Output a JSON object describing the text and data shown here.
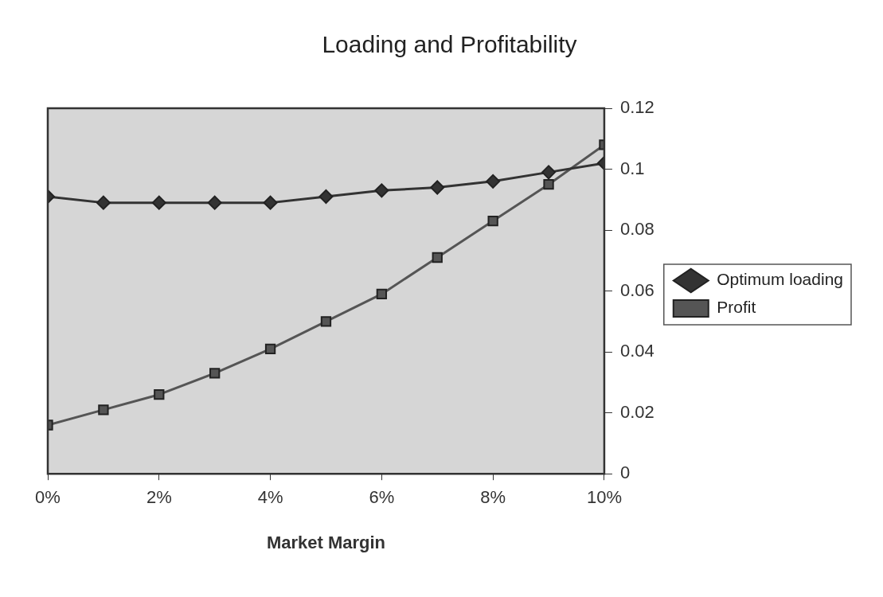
{
  "chart_data": {
    "type": "line",
    "title": "Loading and Profitability",
    "xlabel": "Market Margin",
    "x": [
      0,
      0.01,
      0.02,
      0.03,
      0.04,
      0.05,
      0.06,
      0.07,
      0.08,
      0.09,
      0.1
    ],
    "xlim": [
      0,
      0.1
    ],
    "xticks": [
      {
        "value": 0,
        "label": "0%"
      },
      {
        "value": 0.02,
        "label": "2%"
      },
      {
        "value": 0.04,
        "label": "4%"
      },
      {
        "value": 0.06,
        "label": "6%"
      },
      {
        "value": 0.08,
        "label": "8%"
      },
      {
        "value": 0.1,
        "label": "10%"
      }
    ],
    "ylim": [
      0,
      0.12
    ],
    "yticks": [
      0,
      0.02,
      0.04,
      0.06,
      0.08,
      0.1,
      0.12
    ],
    "series": [
      {
        "name": "Optimum loading",
        "color": "#333333",
        "marker": "diamond",
        "values": [
          0.091,
          0.089,
          0.089,
          0.089,
          0.089,
          0.091,
          0.093,
          0.094,
          0.096,
          0.099,
          0.102
        ]
      },
      {
        "name": "Profit",
        "color": "#555555",
        "marker": "square",
        "values": [
          0.016,
          0.021,
          0.026,
          0.033,
          0.041,
          0.05,
          0.059,
          0.071,
          0.083,
          0.095,
          0.108
        ]
      }
    ],
    "grid": false,
    "legend": "right",
    "line_style": "solid"
  }
}
